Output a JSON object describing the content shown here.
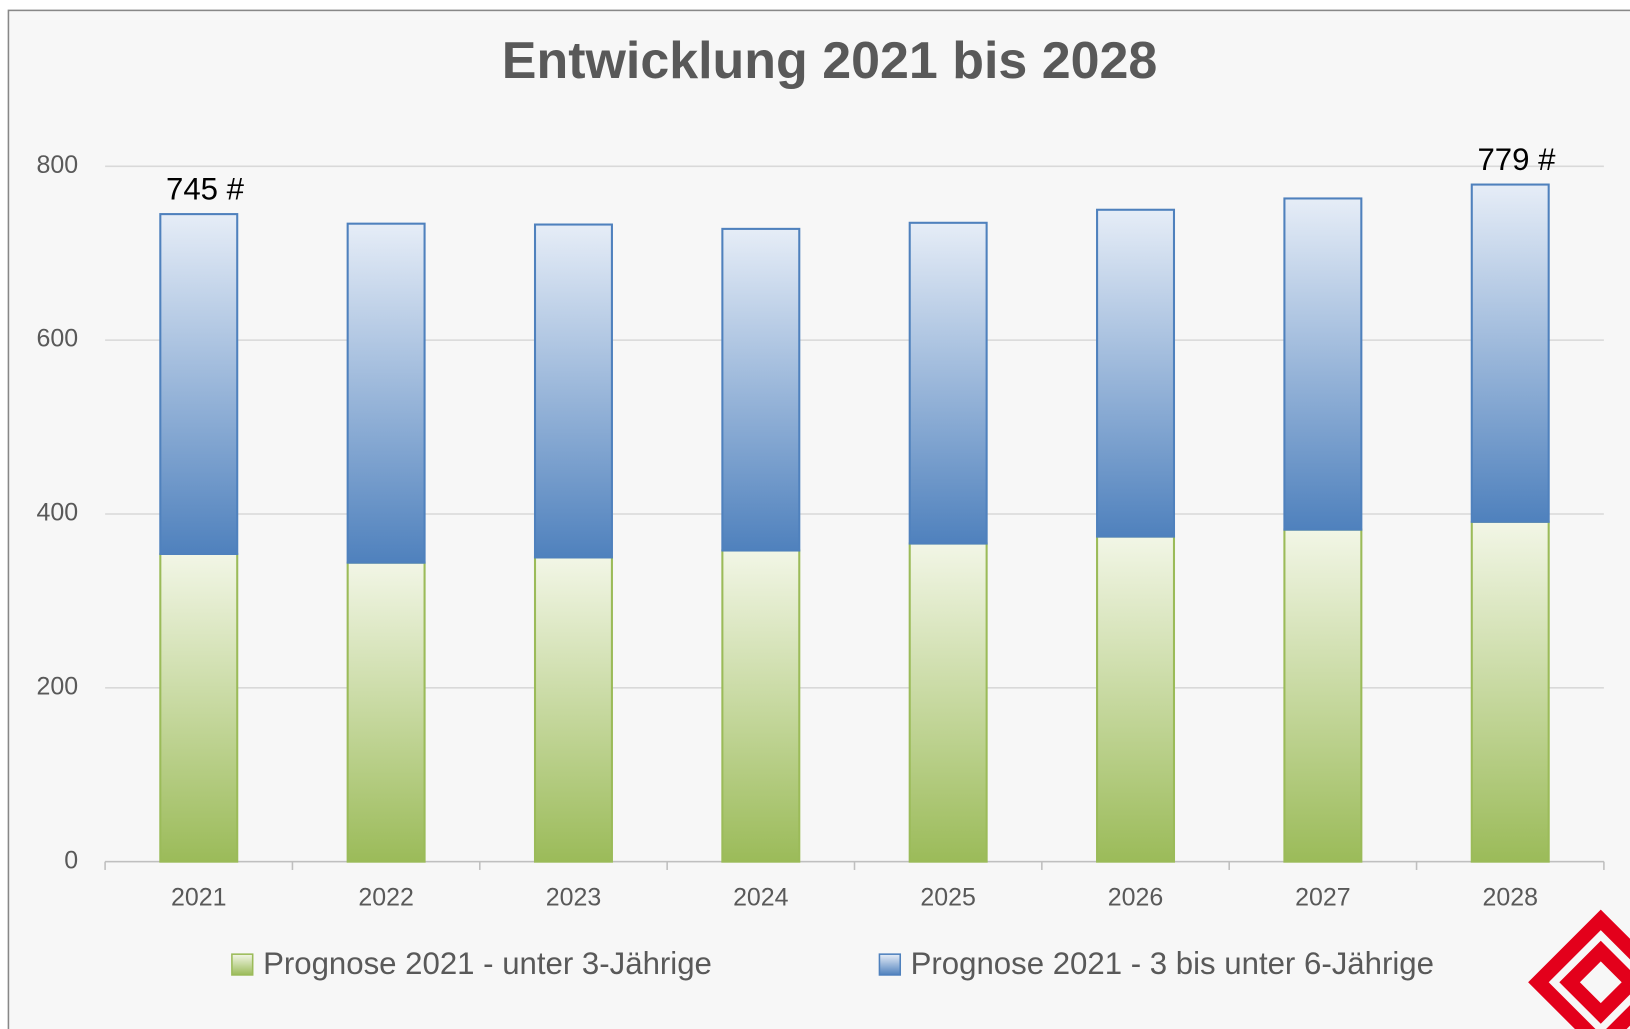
{
  "chart_data": {
    "type": "stacked_bar",
    "title": "Entwicklung 2021 bis 2028",
    "categories": [
      "2021",
      "2022",
      "2023",
      "2024",
      "2025",
      "2026",
      "2027",
      "2028"
    ],
    "series": [
      {
        "name": "Prognose 2021 - unter 3-Jährige",
        "color": "#9bbb59",
        "values": [
          354,
          344,
          350,
          358,
          366,
          374,
          382,
          391
        ]
      },
      {
        "name": "Prognose 2021 - 3 bis unter 6-Jährige",
        "color": "#4f81bd",
        "values": [
          391,
          390,
          383,
          370,
          369,
          376,
          381,
          388
        ]
      }
    ],
    "annotations": [
      "745 #",
      "779 #"
    ],
    "ylim": [
      0,
      800
    ],
    "yticks": [
      0,
      200,
      400,
      600,
      800
    ],
    "grid": true,
    "legend": "bottom"
  }
}
